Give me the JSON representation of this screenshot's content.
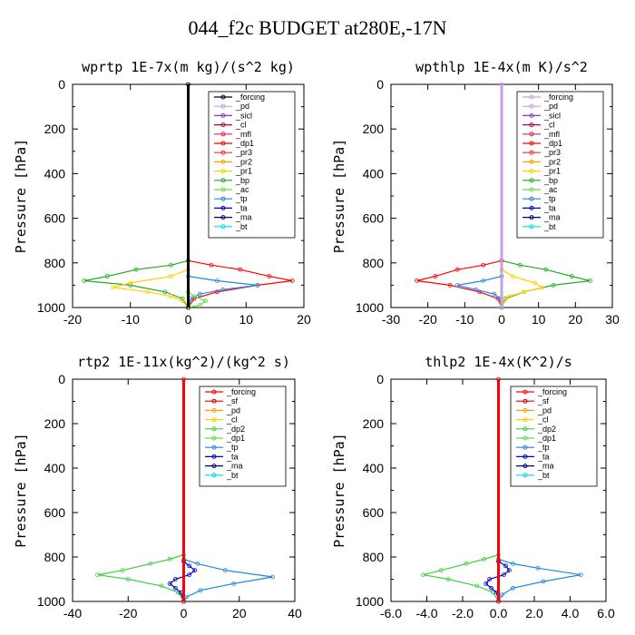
{
  "title": "044_f2c  BUDGET at280E,-17N",
  "colors": {
    "forcing_black": "#000000",
    "forcing_red": "#ff0000",
    "pd": "#c8a0e0",
    "sicl": "#8040c0",
    "cl": "#c00040",
    "mfl": "#e02060",
    "dp1": "#ff0000",
    "pr3": "#ff3030",
    "pr2": "#ffa000",
    "pr1": "#ffd000",
    "bp": "#22aa22",
    "ac": "#66dd44",
    "tp": "#2288dd",
    "ta": "#0000cc",
    "ma": "#000080",
    "bt": "#00e0e0",
    "sf": "#dd0000",
    "dp2": "#44cc44"
  },
  "chart_data": [
    {
      "type": "line",
      "title": "wprtp   1E-7x(m kg)/(s^2 kg)",
      "ylabel": "Pressure [hPa]",
      "xlim": [
        -20,
        20
      ],
      "ylim": [
        1000,
        0
      ],
      "xticks": [
        "-20",
        "-10",
        "0",
        "10",
        "20"
      ],
      "xtick_values": [
        -20,
        -10,
        0,
        10,
        20
      ],
      "yticks": [
        "0",
        "200",
        "400",
        "600",
        "800",
        "1000"
      ],
      "legend": [
        "_forcing",
        "_pd",
        "_sicl",
        "_cl",
        "_mfl",
        "_dp1",
        "_pr3",
        "_pr2",
        "_pr1",
        "_bp",
        "_ac",
        "_tp",
        "_ta",
        "_ma",
        "_bt"
      ],
      "legend_colors": [
        "#000000",
        "#c8a0e0",
        "#8040c0",
        "#c00040",
        "#e02060",
        "#ff0000",
        "#ff3030",
        "#ffa000",
        "#ffd000",
        "#22aa22",
        "#66dd44",
        "#2288dd",
        "#0000cc",
        "#000080",
        "#00e0e0"
      ],
      "series": [
        {
          "color": "#ff0000",
          "p": [
            790,
            810,
            830,
            860,
            880,
            900,
            930,
            960,
            1000
          ],
          "x": [
            0,
            4,
            9,
            14,
            18,
            12,
            5,
            1,
            0
          ]
        },
        {
          "color": "#22aa22",
          "p": [
            790,
            810,
            830,
            860,
            880,
            900,
            930,
            960,
            1000
          ],
          "x": [
            0,
            -3,
            -9,
            -14,
            -18,
            -10,
            -4,
            -1,
            0
          ]
        },
        {
          "color": "#ffd000",
          "p": [
            830,
            860,
            890,
            910,
            930,
            950,
            970,
            1000
          ],
          "x": [
            0,
            -3,
            -10,
            -13,
            -7,
            -3,
            -1,
            0
          ]
        },
        {
          "color": "#2288dd",
          "p": [
            860,
            880,
            900,
            920,
            940,
            960,
            1000
          ],
          "x": [
            0,
            5,
            12,
            6,
            2,
            0.5,
            0
          ]
        },
        {
          "color": "#66dd44",
          "p": [
            930,
            950,
            970,
            990,
            1000
          ],
          "x": [
            0,
            1,
            3,
            2,
            0
          ]
        },
        {
          "color": "#000000",
          "p": [
            0,
            1000
          ],
          "x": [
            0,
            0
          ]
        }
      ]
    },
    {
      "type": "line",
      "title": "wpthlp   1E-4x(m K)/s^2",
      "ylabel": "Pressure [hPa]",
      "xlim": [
        -30,
        30
      ],
      "ylim": [
        1000,
        0
      ],
      "xticks": [
        "-30",
        "-20",
        "-10",
        "0",
        "10",
        "20",
        "30"
      ],
      "xtick_values": [
        -30,
        -20,
        -10,
        0,
        10,
        20,
        30
      ],
      "yticks": [
        "0",
        "200",
        "400",
        "600",
        "800",
        "1000"
      ],
      "legend": [
        "_forcing",
        "_pd",
        "_sicl",
        "_cl",
        "_mfl",
        "_dp1",
        "_pr3",
        "_pr2",
        "_pr1",
        "_bp",
        "_ac",
        "_tp",
        "_ta",
        "_ma",
        "_bt"
      ],
      "legend_colors": [
        "#c8a0e0",
        "#c8a0e0",
        "#8040c0",
        "#c00040",
        "#e02060",
        "#ff0000",
        "#ff3030",
        "#ffa000",
        "#ffd000",
        "#22aa22",
        "#66dd44",
        "#2288dd",
        "#0000cc",
        "#000080",
        "#00e0e0"
      ],
      "series": [
        {
          "color": "#22aa22",
          "p": [
            790,
            810,
            830,
            860,
            880,
            900,
            930,
            960,
            1000
          ],
          "x": [
            0,
            5,
            12,
            19,
            24,
            14,
            6,
            1,
            0
          ]
        },
        {
          "color": "#ff0000",
          "p": [
            790,
            810,
            830,
            860,
            880,
            900,
            930,
            960,
            1000
          ],
          "x": [
            0,
            -5,
            -12,
            -18,
            -23,
            -14,
            -6,
            -1,
            0
          ]
        },
        {
          "color": "#ffd000",
          "p": [
            830,
            860,
            890,
            910,
            930,
            950,
            970,
            1000
          ],
          "x": [
            0,
            3,
            9,
            11,
            6,
            2,
            0.5,
            0
          ]
        },
        {
          "color": "#2288dd",
          "p": [
            860,
            880,
            900,
            920,
            940,
            960,
            1000
          ],
          "x": [
            0,
            -5,
            -12,
            -7,
            -2,
            -0.5,
            0
          ]
        },
        {
          "color": "#c8a0e0",
          "p": [
            0,
            1000
          ],
          "x": [
            0,
            0
          ]
        }
      ]
    },
    {
      "type": "line",
      "title": "rtp2   1E-11x(kg^2)/(kg^2 s)",
      "ylabel": "Pressure [hPa]",
      "xlim": [
        -40,
        40
      ],
      "ylim": [
        1000,
        0
      ],
      "xticks": [
        "-40",
        "-20",
        "0",
        "20",
        "40"
      ],
      "xtick_values": [
        -40,
        -20,
        0,
        20,
        40
      ],
      "yticks": [
        "0",
        "200",
        "400",
        "600",
        "800",
        "1000"
      ],
      "legend": [
        "_forcing",
        "_sf",
        "_pd",
        "_cl",
        "_dp2",
        "_dp1",
        "_tp",
        "_ta",
        "_ma",
        "_bt"
      ],
      "legend_colors": [
        "#ff0000",
        "#dd0000",
        "#ffa000",
        "#ffd000",
        "#44cc44",
        "#66dd44",
        "#2288dd",
        "#0000cc",
        "#000080",
        "#00e0e0"
      ],
      "series": [
        {
          "color": "#44cc44",
          "p": [
            790,
            810,
            830,
            860,
            880,
            900,
            930,
            960,
            1000
          ],
          "x": [
            0,
            -5,
            -12,
            -22,
            -31,
            -20,
            -8,
            -2,
            0
          ]
        },
        {
          "color": "#2288dd",
          "p": [
            810,
            830,
            860,
            890,
            920,
            950,
            980,
            1000
          ],
          "x": [
            0,
            5,
            15,
            32,
            18,
            6,
            1,
            0
          ]
        },
        {
          "color": "#0000cc",
          "p": [
            820,
            840,
            860,
            880,
            900,
            920,
            940,
            960,
            1000
          ],
          "x": [
            0,
            2,
            4,
            2,
            -3,
            -5,
            -3,
            -1,
            0
          ]
        },
        {
          "color": "#ff0000",
          "p": [
            0,
            1000
          ],
          "x": [
            0,
            0
          ]
        }
      ]
    },
    {
      "type": "line",
      "title": "thlp2   1E-4x(K^2)/s",
      "ylabel": "Pressure [hPa]",
      "xlim": [
        -6,
        6
      ],
      "ylim": [
        1000,
        0
      ],
      "xticks": [
        "-6.0",
        "-4.0",
        "-2.0",
        "0.0",
        "2.0",
        "4.0",
        "6.0"
      ],
      "xtick_values": [
        -6,
        -4,
        -2,
        0,
        2,
        4,
        6
      ],
      "yticks": [
        "0",
        "200",
        "400",
        "600",
        "800",
        "1000"
      ],
      "legend": [
        "_forcing",
        "_sf",
        "_pd",
        "_cl",
        "_dp2",
        "_dp1",
        "_tp",
        "_ta",
        "_ma",
        "_bt"
      ],
      "legend_colors": [
        "#ff0000",
        "#dd0000",
        "#ffa000",
        "#ffd000",
        "#44cc44",
        "#66dd44",
        "#2288dd",
        "#0000cc",
        "#000080",
        "#00e0e0"
      ],
      "series": [
        {
          "color": "#44cc44",
          "p": [
            790,
            810,
            830,
            860,
            880,
            900,
            930,
            960,
            1000
          ],
          "x": [
            0,
            -0.8,
            -1.8,
            -3.2,
            -4.2,
            -2.8,
            -1.2,
            -0.3,
            0
          ]
        },
        {
          "color": "#2288dd",
          "p": [
            810,
            830,
            850,
            880,
            910,
            940,
            970,
            1000
          ],
          "x": [
            0,
            0.8,
            2.2,
            4.6,
            2.5,
            0.8,
            0.2,
            0
          ]
        },
        {
          "color": "#0000cc",
          "p": [
            820,
            840,
            860,
            880,
            900,
            920,
            940,
            960,
            1000
          ],
          "x": [
            0,
            0.4,
            0.6,
            0.3,
            -0.5,
            -0.7,
            -0.4,
            -0.1,
            0
          ]
        },
        {
          "color": "#ff0000",
          "p": [
            0,
            1000
          ],
          "x": [
            0,
            0
          ]
        }
      ]
    }
  ]
}
